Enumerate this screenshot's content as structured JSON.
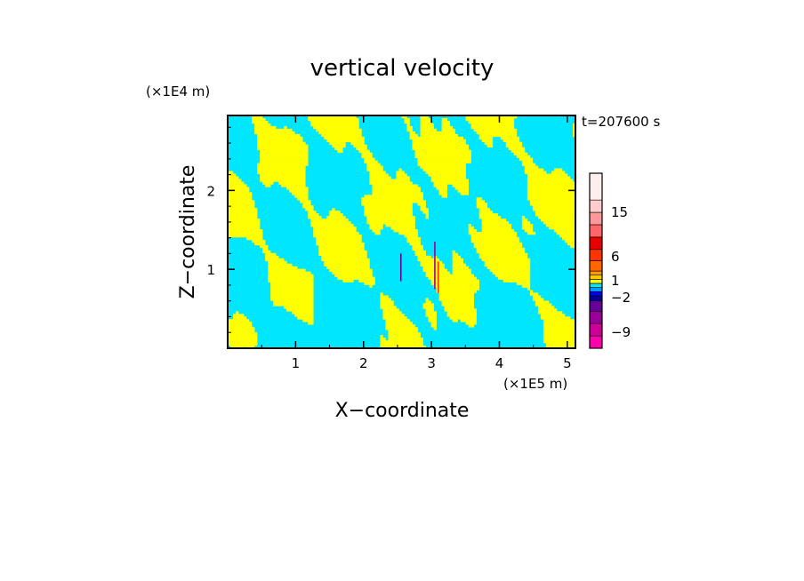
{
  "chart_data": {
    "type": "heatmap",
    "title": "vertical velocity",
    "xlabel": "X−coordinate",
    "ylabel": "Z−coordinate",
    "x_scale_label": "(×1E5 m)",
    "y_scale_label": "(×1E4 m)",
    "time_label": "t=207600 s",
    "xlim": [
      0,
      5.12
    ],
    "ylim": [
      0,
      2.95
    ],
    "x_ticks": [
      1,
      2,
      3,
      4,
      5
    ],
    "x_tick_labels": [
      "1",
      "2",
      "3",
      "4",
      "5"
    ],
    "y_ticks": [
      1,
      2
    ],
    "y_tick_labels": [
      "1",
      "2"
    ],
    "colorbar": {
      "levels": [
        {
          "color": "#ff00aa"
        },
        {
          "color": "#cc0099"
        },
        {
          "color": "#990099"
        },
        {
          "color": "#660099"
        },
        {
          "color": "#000099"
        },
        {
          "color": "#0000ff"
        },
        {
          "color": "#0099ff"
        },
        {
          "color": "#00e6ff"
        },
        {
          "color": "#ffff00"
        },
        {
          "color": "#ffcc00"
        },
        {
          "color": "#ff9900"
        },
        {
          "color": "#ff6600"
        },
        {
          "color": "#ff3300"
        },
        {
          "color": "#e60000"
        },
        {
          "color": "#ff6666"
        },
        {
          "color": "#ff9999"
        },
        {
          "color": "#ffcccc"
        },
        {
          "color": "#ffeeee"
        }
      ],
      "tick_labels": [
        "−9",
        "−2",
        "1",
        "6",
        "15"
      ]
    },
    "dominant_colors": {
      "negative": "#00e6ff",
      "positive": "#ffff00"
    }
  }
}
